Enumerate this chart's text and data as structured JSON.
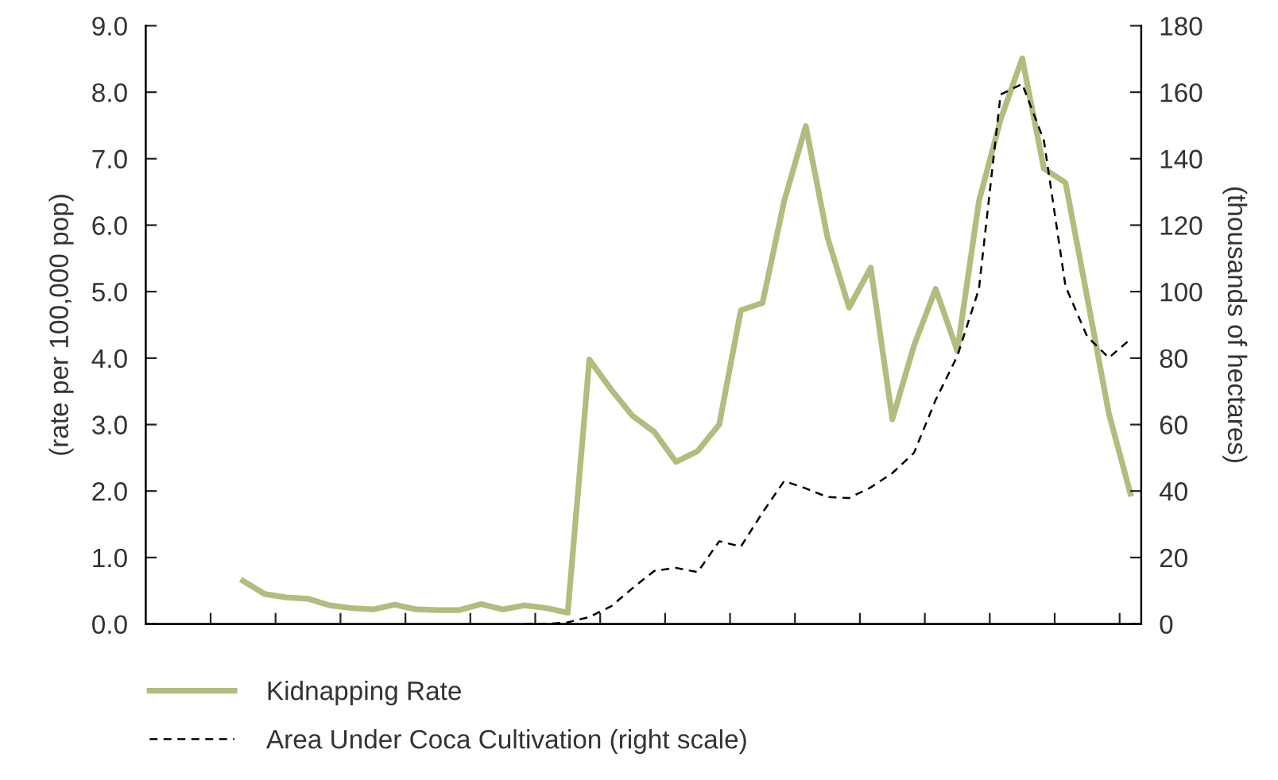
{
  "chart_data": {
    "type": "line",
    "categories": [
      null,
      null,
      null,
      null,
      null,
      null,
      null,
      null,
      null,
      null,
      null,
      null,
      null,
      null,
      null,
      null,
      null,
      null,
      null,
      null,
      null,
      null,
      null,
      null,
      null,
      null,
      null,
      null,
      null,
      null,
      null,
      null,
      null,
      null,
      null,
      null,
      null,
      null,
      null,
      null,
      null,
      null,
      null,
      null,
      null,
      null
    ],
    "ylabel": "(rate per 100,000 pop)",
    "y2label": "(thousands of hectares)",
    "ylim": [
      0,
      9
    ],
    "yticks": [
      {
        "value": 0,
        "label": "0.0"
      },
      {
        "value": 1,
        "label": "1.0"
      },
      {
        "value": 2,
        "label": "2.0"
      },
      {
        "value": 3,
        "label": "3.0"
      },
      {
        "value": 4,
        "label": "4.0"
      },
      {
        "value": 5,
        "label": "5.0"
      },
      {
        "value": 6,
        "label": "6.0"
      },
      {
        "value": 7,
        "label": "7.0"
      },
      {
        "value": 8,
        "label": "8.0"
      },
      {
        "value": 9,
        "label": "9.0"
      }
    ],
    "y2lim": [
      0,
      180
    ],
    "y2ticks": [
      0,
      20,
      40,
      60,
      80,
      100,
      120,
      140,
      160,
      180
    ],
    "grid": false,
    "legend": "bottom left",
    "marker": "none",
    "series": [
      {
        "name": "Kidnapping Rate",
        "color": "#b3bb7e",
        "line_style": "solid",
        "values": [
          null,
          null,
          null,
          null,
          0.65,
          0.45,
          0.4,
          0.38,
          0.28,
          0.24,
          0.22,
          0.29,
          0.22,
          0.21,
          0.21,
          0.3,
          0.22,
          0.28,
          0.24,
          0.17,
          3.98,
          3.53,
          3.13,
          2.89,
          2.44,
          2.6,
          3.0,
          4.72,
          4.83,
          6.36,
          7.49,
          5.82,
          4.76,
          5.36,
          3.08,
          4.19,
          5.04,
          4.11,
          6.36,
          7.59,
          8.51,
          6.85,
          6.64,
          4.92,
          3.17,
          1.96
        ]
      },
      {
        "name": "Area Under Coca Cultivation (right scale)",
        "color": "#000000",
        "line_style": "dashed",
        "axis": "y2",
        "values": [
          null,
          null,
          null,
          null,
          null,
          null,
          null,
          null,
          null,
          null,
          null,
          null,
          null,
          null,
          null,
          null,
          null,
          0,
          0,
          0.5,
          2.1,
          5.3,
          10.8,
          16,
          16.9,
          15.6,
          24.9,
          23.3,
          33.5,
          43,
          40.8,
          38.2,
          37.9,
          41.1,
          45.4,
          51.5,
          67.4,
          80.6,
          100.8,
          159.3,
          162.5,
          145.5,
          101.6,
          86.5,
          80.1,
          85.7
        ]
      }
    ]
  }
}
